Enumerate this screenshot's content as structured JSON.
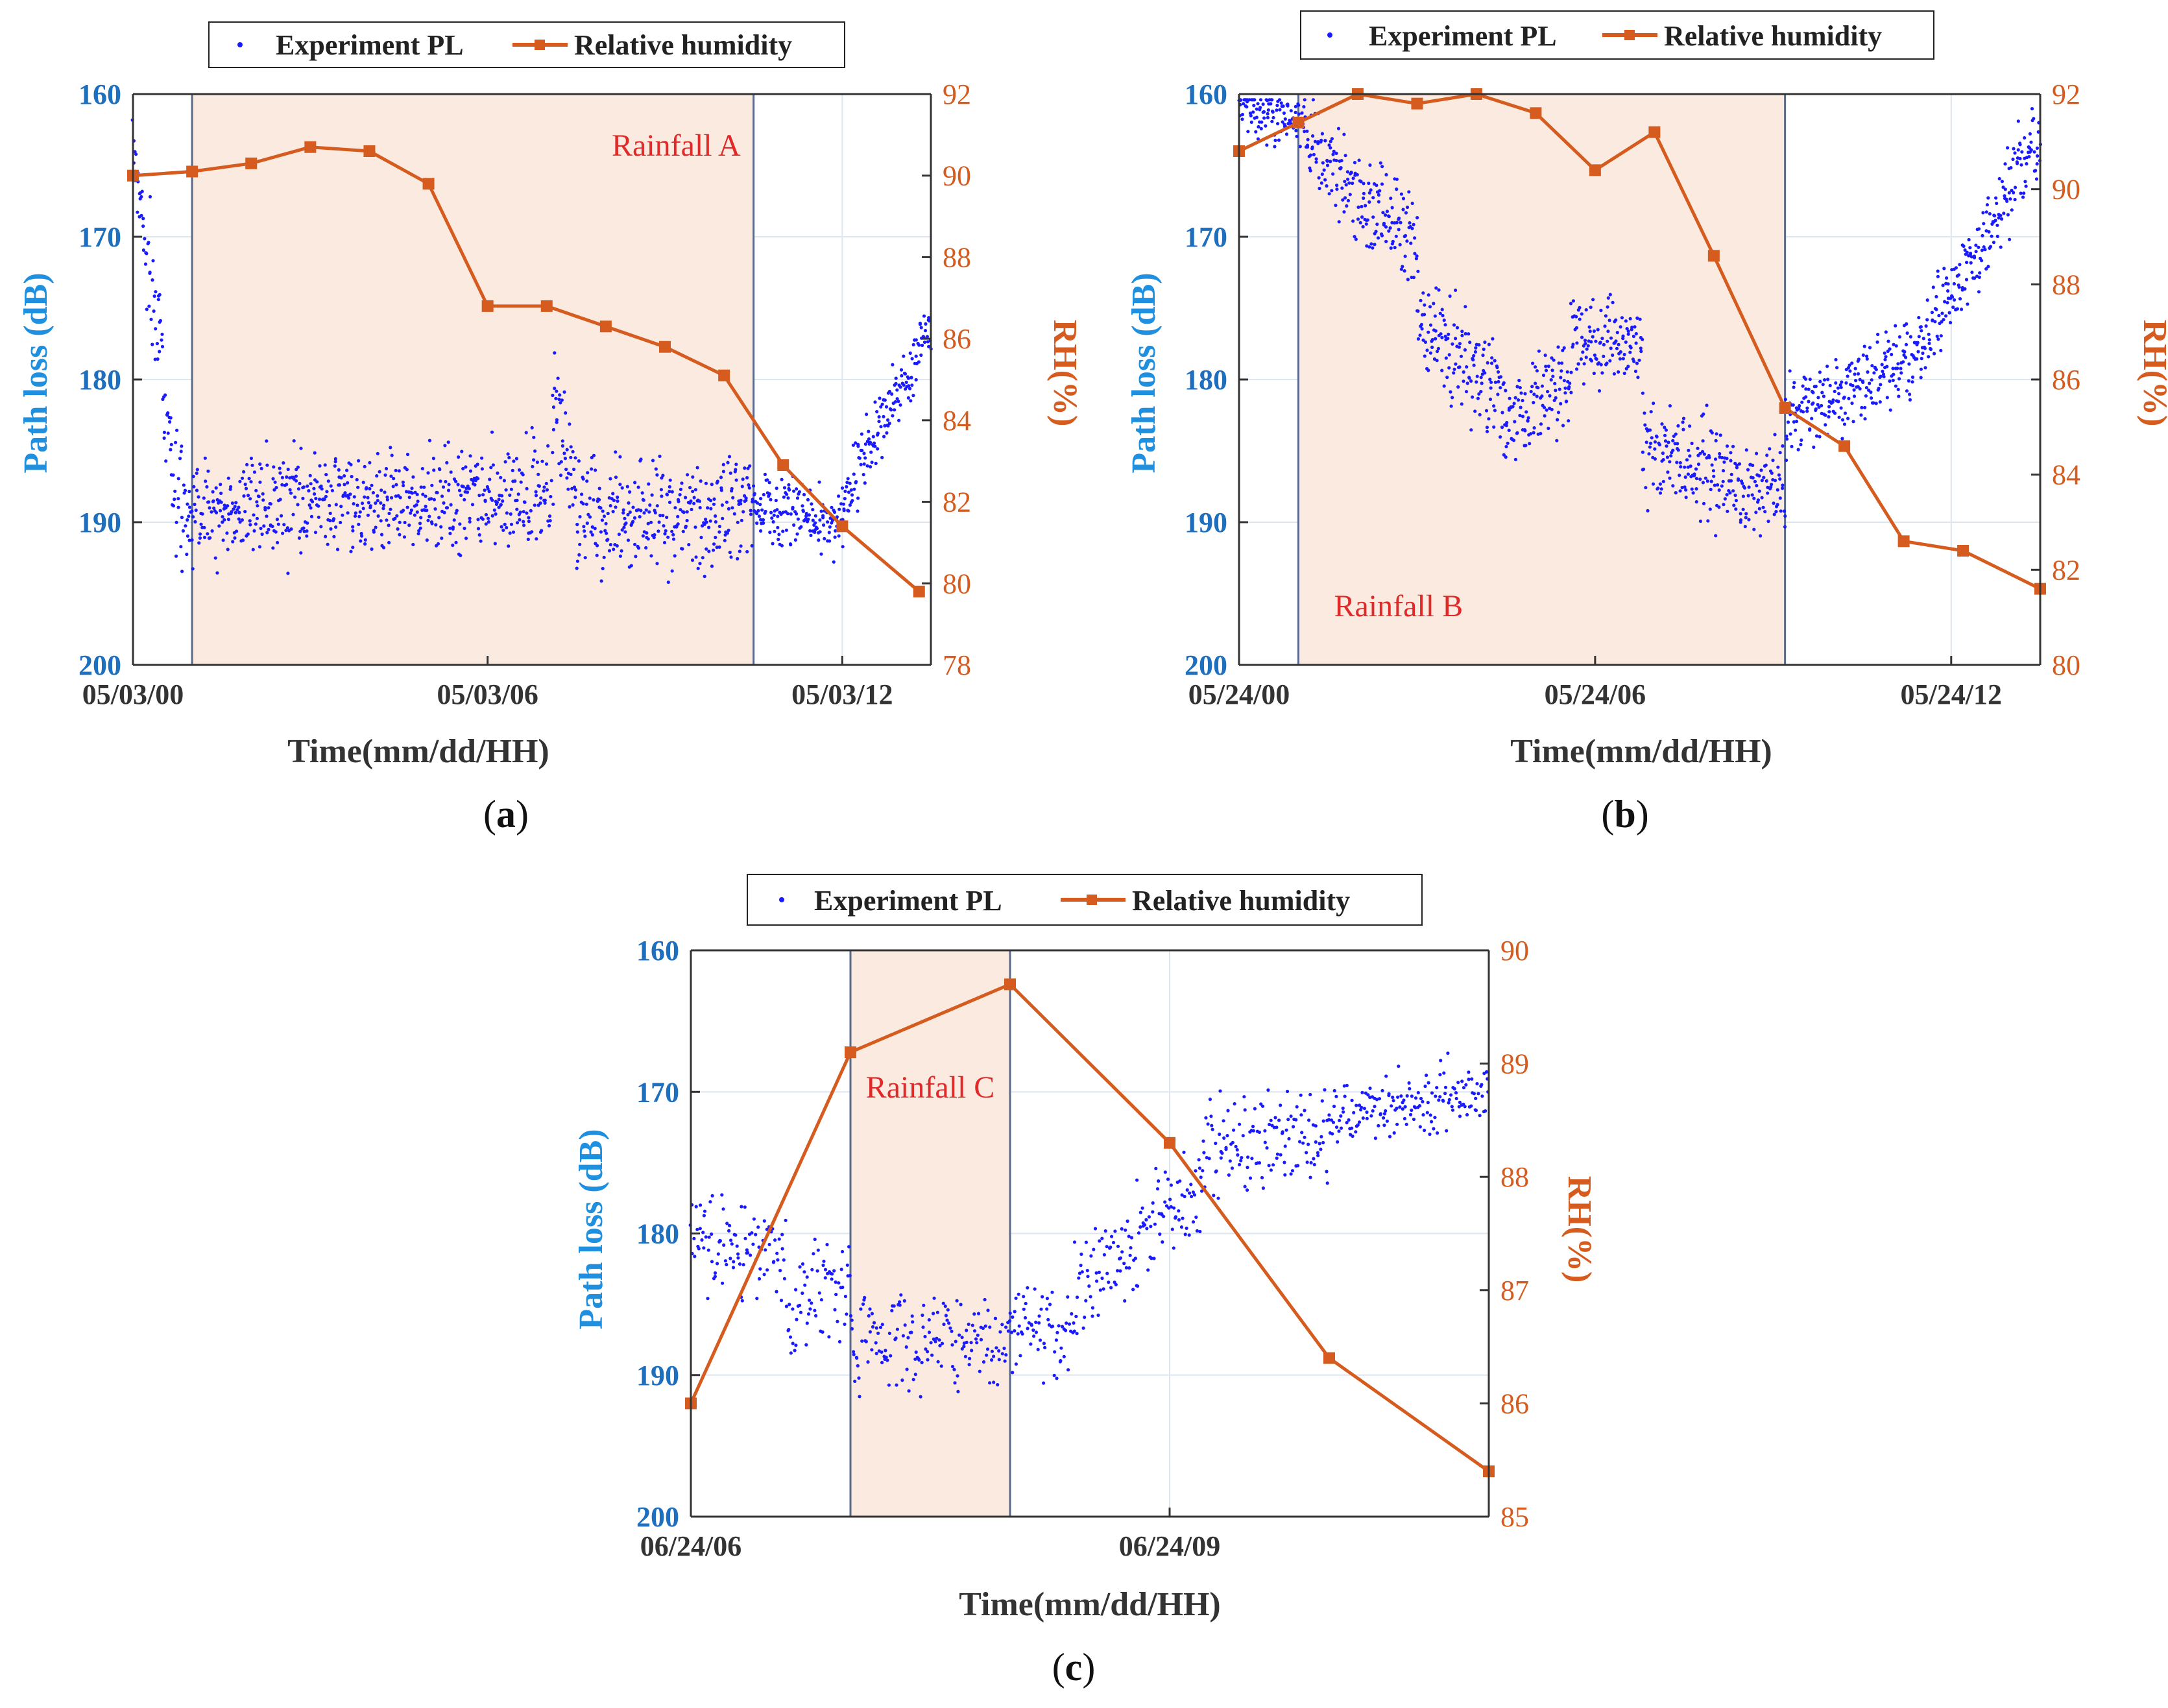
{
  "chart_data": [
    {
      "id": "a",
      "type": "scatter+line",
      "panel_label": "(a)",
      "panel_letter": "a",
      "legend": [
        "Experiment PL",
        "Relative humidity"
      ],
      "xlabel": "Time(mm/dd/HH)",
      "ylabel_left": "Path loss (dB)",
      "ylabel_right": "RH(%)",
      "xlim_hours": [
        0,
        13.5
      ],
      "ylim_left": [
        160,
        200
      ],
      "ylim_right": [
        78,
        92
      ],
      "left_ticks": [
        160,
        170,
        180,
        190,
        200
      ],
      "right_ticks": [
        78,
        80,
        82,
        84,
        86,
        88,
        90,
        92
      ],
      "x_ticks": [
        {
          "h": 0,
          "label": "05/03/00"
        },
        {
          "h": 6,
          "label": "05/03/06"
        },
        {
          "h": 12,
          "label": "05/03/12"
        }
      ],
      "rain_band_hours": [
        1,
        10.5
      ],
      "annotation": "Rainfall A",
      "annotation_anchor": "top-right",
      "rh_hours": [
        0,
        1,
        2,
        3,
        4,
        5,
        6,
        7,
        8,
        9,
        10,
        11,
        12,
        13.3
      ],
      "rh_values": [
        90.0,
        90.1,
        90.3,
        90.7,
        90.6,
        89.8,
        86.8,
        86.8,
        86.3,
        85.8,
        85.1,
        82.9,
        81.4,
        79.8
      ],
      "pl_series": {
        "step_hours": 0.01,
        "seed": 11,
        "segments": [
          {
            "from": 0.0,
            "to": 0.25,
            "start": 164,
            "end": 172,
            "noise": 3
          },
          {
            "from": 0.25,
            "to": 0.85,
            "start": 172,
            "end": 190,
            "noise": 4
          },
          {
            "from": 0.85,
            "to": 7.1,
            "start": 189,
            "end": 188,
            "noise": 3
          },
          {
            "from": 7.1,
            "to": 7.5,
            "start": 181,
            "end": 187,
            "noise": 3
          },
          {
            "from": 7.5,
            "to": 10.5,
            "start": 190,
            "end": 189,
            "noise": 3
          },
          {
            "from": 10.5,
            "to": 12.0,
            "start": 189,
            "end": 190,
            "noise": 2
          },
          {
            "from": 12.0,
            "to": 13.5,
            "start": 189,
            "end": 176,
            "noise": 2
          }
        ]
      }
    },
    {
      "id": "b",
      "type": "scatter+line",
      "panel_label": "(b)",
      "panel_letter": "b",
      "legend": [
        "Experiment PL",
        "Relative humidity"
      ],
      "xlabel": "Time(mm/dd/HH)",
      "ylabel_left": "Path loss (dB)",
      "ylabel_right": "RH(%)",
      "xlim_hours": [
        0,
        13.5
      ],
      "ylim_left": [
        160,
        200
      ],
      "ylim_right": [
        80,
        92
      ],
      "left_ticks": [
        160,
        170,
        180,
        190,
        200
      ],
      "right_ticks": [
        80,
        82,
        84,
        86,
        88,
        90,
        92
      ],
      "x_ticks": [
        {
          "h": 0,
          "label": "05/24/00"
        },
        {
          "h": 6,
          "label": "05/24/06"
        },
        {
          "h": 12,
          "label": "05/24/12"
        }
      ],
      "rain_band_hours": [
        1,
        9.2
      ],
      "annotation": "Rainfall B",
      "annotation_anchor": "bottom-left",
      "rh_hours": [
        0,
        1,
        2,
        3,
        4,
        5,
        6,
        7,
        8,
        9.2,
        10.2,
        11.2,
        12.2,
        13.5
      ],
      "rh_values": [
        90.8,
        91.4,
        92.0,
        91.8,
        92.0,
        91.6,
        90.4,
        91.2,
        88.6,
        85.4,
        84.6,
        82.6,
        82.4,
        81.6
      ],
      "pl_series": {
        "step_hours": 0.01,
        "seed": 23,
        "segments": [
          {
            "from": 0.0,
            "to": 1.0,
            "start": 161,
            "end": 162,
            "noise": 1.5
          },
          {
            "from": 1.0,
            "to": 2.2,
            "start": 162,
            "end": 168,
            "noise": 2.5
          },
          {
            "from": 2.2,
            "to": 3.0,
            "start": 168,
            "end": 170,
            "noise": 3
          },
          {
            "from": 3.0,
            "to": 4.5,
            "start": 176,
            "end": 181,
            "noise": 3
          },
          {
            "from": 4.5,
            "to": 5.6,
            "start": 183,
            "end": 180,
            "noise": 3
          },
          {
            "from": 5.6,
            "to": 6.8,
            "start": 177,
            "end": 178,
            "noise": 2.5
          },
          {
            "from": 6.8,
            "to": 9.2,
            "start": 185,
            "end": 188,
            "noise": 3
          },
          {
            "from": 9.2,
            "to": 11.5,
            "start": 183,
            "end": 178,
            "noise": 2.5
          },
          {
            "from": 11.5,
            "to": 13.5,
            "start": 178,
            "end": 163,
            "noise": 2.5
          }
        ]
      }
    },
    {
      "id": "c",
      "type": "scatter+line",
      "panel_label": "(c)",
      "panel_letter": "c",
      "legend": [
        "Experiment PL",
        "Relative humidity"
      ],
      "xlabel": "Time(mm/dd/HH)",
      "ylabel_left": "Path loss (dB)",
      "ylabel_right": "RH(%)",
      "xlim_hours": [
        6,
        11
      ],
      "ylim_left": [
        160,
        200
      ],
      "ylim_right": [
        85,
        90
      ],
      "left_ticks": [
        160,
        170,
        180,
        190,
        200
      ],
      "right_ticks": [
        85,
        86,
        87,
        88,
        89,
        90
      ],
      "x_ticks": [
        {
          "h": 6,
          "label": "06/24/06"
        },
        {
          "h": 9,
          "label": "06/24/09"
        }
      ],
      "rain_band_hours": [
        7,
        8
      ],
      "annotation": "Rainfall C",
      "annotation_anchor": "center",
      "rh_hours": [
        6,
        7,
        8,
        9,
        10,
        11
      ],
      "rh_values": [
        86.0,
        89.1,
        89.7,
        88.3,
        86.4,
        85.4
      ],
      "pl_series": {
        "step_hours": 0.006,
        "seed": 37,
        "segments": [
          {
            "from": 6.0,
            "to": 6.6,
            "start": 181,
            "end": 181,
            "noise": 3
          },
          {
            "from": 6.6,
            "to": 7.0,
            "start": 186,
            "end": 183,
            "noise": 3
          },
          {
            "from": 7.0,
            "to": 8.0,
            "start": 187,
            "end": 188,
            "noise": 3
          },
          {
            "from": 8.0,
            "to": 8.4,
            "start": 187,
            "end": 187,
            "noise": 3
          },
          {
            "from": 8.4,
            "to": 9.2,
            "start": 184,
            "end": 177,
            "noise": 3
          },
          {
            "from": 9.2,
            "to": 10.0,
            "start": 174,
            "end": 173,
            "noise": 3
          },
          {
            "from": 10.0,
            "to": 11.0,
            "start": 172,
            "end": 170,
            "noise": 2
          }
        ]
      }
    }
  ],
  "colors": {
    "pl": "#1a1aff",
    "rh": "#d55c1e",
    "rain_band": "#fbeadf",
    "axis_left": "#1f6fbf",
    "axis_right": "#d55c1e",
    "annotation": "#e02a2a",
    "grid": "#dde6ef"
  }
}
